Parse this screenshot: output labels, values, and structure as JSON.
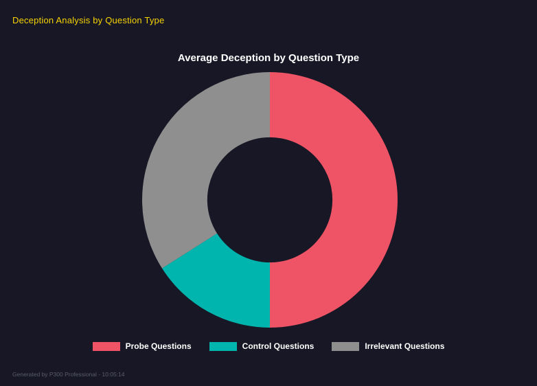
{
  "page": {
    "title": "Deception Analysis by Question Type",
    "footer": "Generated by P300 Professional - 10:05:14"
  },
  "colors": {
    "background": "#171725",
    "page_title": "#f8d400",
    "chart_title": "#ffffff",
    "legend_text": "#ffffff",
    "footer_text": "#5a5d6e"
  },
  "chart_data": {
    "type": "pie",
    "subtype": "donut",
    "title": "Average Deception by Question Type",
    "categories": [
      "Probe Questions",
      "Control Questions",
      "Irrelevant Questions"
    ],
    "values": [
      50,
      16,
      34
    ],
    "colors": [
      "#ee5465",
      "#00b5ad",
      "#8f8f8f"
    ],
    "inner_radius_ratio": 0.49,
    "start_angle_deg": 0,
    "direction": "clockwise",
    "legend_position": "bottom",
    "grid": false
  }
}
